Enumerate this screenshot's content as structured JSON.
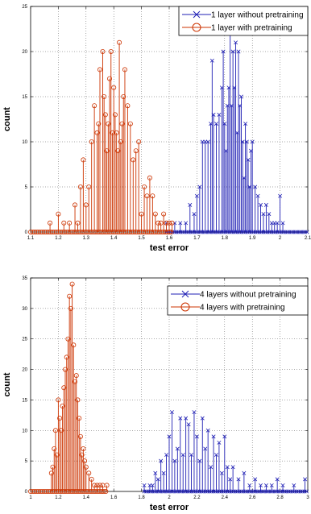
{
  "chart_data": [
    {
      "type": "stem",
      "title": "",
      "xlabel": "test error",
      "ylabel": "count",
      "xlim": [
        1.1,
        2.1
      ],
      "ylim": [
        0,
        25
      ],
      "xticks": [
        1.1,
        1.2,
        1.3,
        1.4,
        1.5,
        1.6,
        1.7,
        1.8,
        1.9,
        2,
        2.1
      ],
      "xtick_labels": [
        "1.1",
        "1.2",
        "1.3",
        "1.4",
        "1.5",
        "1.6",
        "1.7",
        "1.8",
        "1.9",
        "2",
        "2.1"
      ],
      "yticks": [
        0,
        5,
        10,
        15,
        20,
        25
      ],
      "ytick_labels": [
        "0",
        "5",
        "10",
        "15",
        "20",
        "25"
      ],
      "grid": true,
      "legend_position": "top-right",
      "series": [
        {
          "name": "1 layer without pretraining",
          "color": "#1f1fb4",
          "marker": "x",
          "x": [
            1.59,
            1.62,
            1.64,
            1.66,
            1.675,
            1.69,
            1.7,
            1.71,
            1.72,
            1.73,
            1.74,
            1.75,
            1.755,
            1.76,
            1.77,
            1.78,
            1.79,
            1.795,
            1.8,
            1.805,
            1.81,
            1.815,
            1.82,
            1.825,
            1.83,
            1.835,
            1.84,
            1.845,
            1.85,
            1.855,
            1.86,
            1.865,
            1.87,
            1.875,
            1.88,
            1.885,
            1.89,
            1.895,
            1.9,
            1.91,
            1.92,
            1.93,
            1.94,
            1.95,
            1.96,
            1.97,
            1.98,
            1.99,
            2.0,
            2.01
          ],
          "y": [
            1,
            1,
            1,
            1,
            3,
            2,
            4,
            5,
            10,
            10,
            10,
            12,
            19,
            13,
            12,
            13,
            16,
            20,
            12,
            9,
            14,
            16,
            22,
            14,
            20,
            16,
            21,
            11,
            20,
            14,
            15,
            10,
            6,
            12,
            10,
            8,
            5,
            9,
            10,
            5,
            4,
            3,
            2,
            3,
            2,
            1,
            1,
            1,
            4,
            1
          ]
        },
        {
          "name": "1 layer with pretraining",
          "color": "#cc3300",
          "marker": "o",
          "x": [
            1.17,
            1.2,
            1.22,
            1.24,
            1.26,
            1.27,
            1.28,
            1.29,
            1.3,
            1.31,
            1.32,
            1.33,
            1.34,
            1.345,
            1.35,
            1.36,
            1.365,
            1.37,
            1.375,
            1.38,
            1.385,
            1.39,
            1.395,
            1.4,
            1.405,
            1.41,
            1.415,
            1.42,
            1.425,
            1.43,
            1.435,
            1.44,
            1.45,
            1.46,
            1.47,
            1.48,
            1.49,
            1.5,
            1.51,
            1.52,
            1.53,
            1.54,
            1.55,
            1.56,
            1.57,
            1.58,
            1.59,
            1.6,
            1.61
          ],
          "y": [
            1,
            2,
            1,
            1,
            3,
            1,
            5,
            8,
            3,
            5,
            10,
            14,
            11,
            12,
            18,
            20,
            15,
            13,
            9,
            12,
            17,
            20,
            11,
            16,
            13,
            11,
            9,
            21,
            10,
            12,
            15,
            18,
            14,
            12,
            8,
            9,
            10,
            2,
            5,
            4,
            6,
            4,
            2,
            1,
            1,
            2,
            1,
            1,
            1
          ]
        }
      ]
    },
    {
      "type": "stem",
      "title": "",
      "xlabel": "test error",
      "ylabel": "count",
      "xlim": [
        1,
        3
      ],
      "ylim": [
        0,
        35
      ],
      "xticks": [
        1,
        1.2,
        1.4,
        1.6,
        1.8,
        2,
        2.2,
        2.4,
        2.6,
        2.8,
        3
      ],
      "xtick_labels": [
        "1",
        "1.2",
        "1.4",
        "1.6",
        "1.8",
        "2",
        "2.2",
        "2.4",
        "2.6",
        "2.8",
        "3"
      ],
      "yticks": [
        0,
        5,
        10,
        15,
        20,
        25,
        30,
        35
      ],
      "ytick_labels": [
        "0",
        "5",
        "10",
        "15",
        "20",
        "25",
        "30",
        "35"
      ],
      "grid": true,
      "legend_position": "top-right",
      "series": [
        {
          "name": "4 layers without pretraining",
          "color": "#1f1fb4",
          "marker": "x",
          "x": [
            1.82,
            1.86,
            1.88,
            1.9,
            1.92,
            1.94,
            1.96,
            1.98,
            2.0,
            2.02,
            2.04,
            2.06,
            2.08,
            2.1,
            2.12,
            2.14,
            2.16,
            2.18,
            2.2,
            2.22,
            2.24,
            2.26,
            2.28,
            2.3,
            2.32,
            2.34,
            2.36,
            2.38,
            2.4,
            2.42,
            2.44,
            2.46,
            2.5,
            2.54,
            2.58,
            2.62,
            2.66,
            2.7,
            2.74,
            2.78,
            2.82,
            2.9,
            2.98
          ],
          "y": [
            1,
            1,
            1,
            3,
            2,
            5,
            3,
            6,
            9,
            13,
            5,
            7,
            12,
            6,
            12,
            11,
            6,
            13,
            9,
            5,
            12,
            7,
            10,
            4,
            9,
            6,
            8,
            3,
            9,
            4,
            2,
            4,
            2,
            3,
            1,
            2,
            1,
            1,
            1,
            2,
            1,
            1,
            2
          ]
        },
        {
          "name": "4 layers with pretraining",
          "color": "#cc3300",
          "marker": "o",
          "x": [
            1.15,
            1.16,
            1.17,
            1.18,
            1.19,
            1.2,
            1.21,
            1.22,
            1.23,
            1.24,
            1.25,
            1.26,
            1.27,
            1.28,
            1.29,
            1.3,
            1.31,
            1.32,
            1.33,
            1.34,
            1.35,
            1.36,
            1.37,
            1.38,
            1.39,
            1.4,
            1.42,
            1.44,
            1.46,
            1.48,
            1.5,
            1.52,
            1.55
          ],
          "y": [
            3,
            4,
            7,
            10,
            6,
            15,
            12,
            10,
            14,
            17,
            20,
            22,
            25,
            32,
            30,
            34,
            24,
            18,
            19,
            15,
            12,
            9,
            6,
            7,
            5,
            4,
            3,
            2,
            1,
            1,
            1,
            1,
            1
          ]
        }
      ]
    }
  ]
}
